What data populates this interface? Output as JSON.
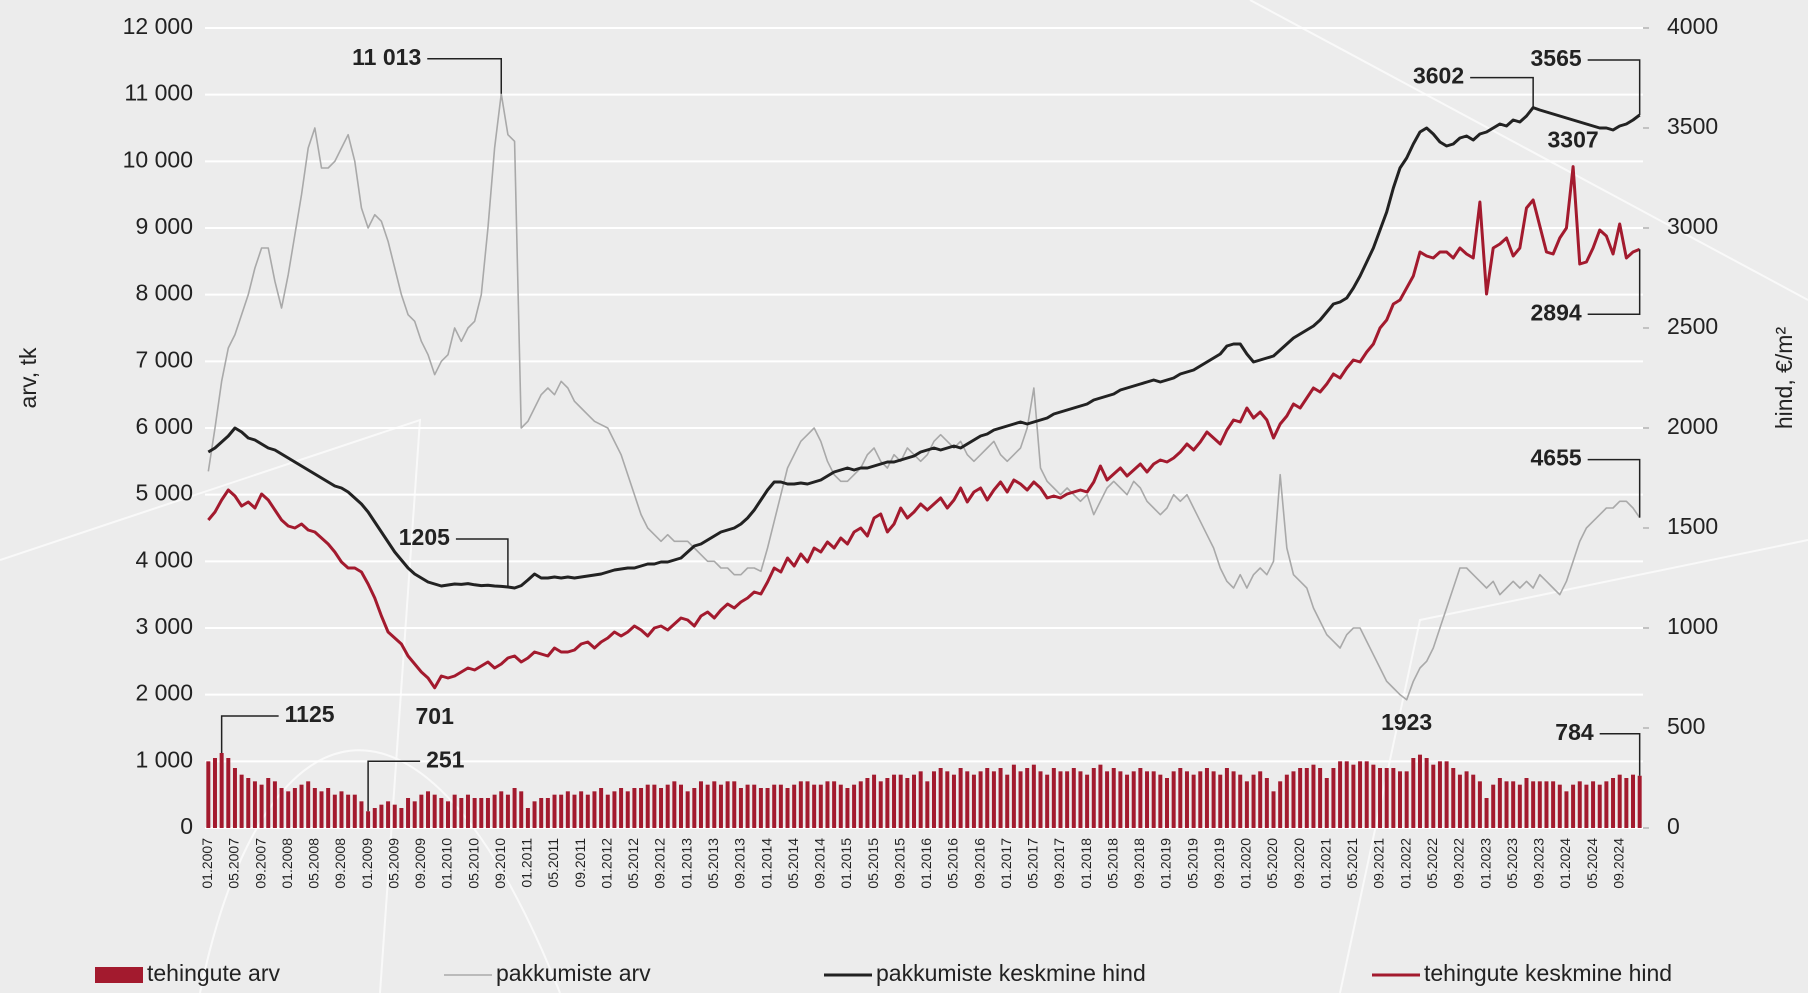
{
  "chart_data": {
    "type": "combo",
    "y_label": "arv, tk",
    "y2_label": "hind, €/m²",
    "ylim": [
      0,
      12000
    ],
    "yticks": [
      0,
      {
        "value": 1000,
        "label": "1 000"
      },
      {
        "value": 2000,
        "label": "2 000"
      },
      {
        "value": 3000,
        "label": "3 000"
      },
      {
        "value": 4000,
        "label": "4 000"
      },
      {
        "value": 5000,
        "label": "5 000"
      },
      {
        "value": 6000,
        "label": "6 000"
      },
      {
        "value": 7000,
        "label": "7 000"
      },
      {
        "value": 8000,
        "label": "8 000"
      },
      {
        "value": 9000,
        "label": "9 000"
      },
      {
        "value": 10000,
        "label": "10 000"
      },
      {
        "value": 11000,
        "label": "11 000"
      },
      {
        "value": 12000,
        "label": "12 000"
      }
    ],
    "y2lim": [
      0,
      4000
    ],
    "y2ticks": [
      0,
      500,
      1000,
      1500,
      2000,
      2500,
      3000,
      3500,
      4000
    ],
    "grid": true,
    "legend": "bottom",
    "categories": [
      "01.2007",
      null,
      null,
      null,
      "05.2007",
      null,
      null,
      null,
      "09.2007",
      null,
      null,
      null,
      "01.2008",
      null,
      null,
      null,
      "05.2008",
      null,
      null,
      null,
      "09.2008",
      null,
      null,
      null,
      "01.2009",
      null,
      null,
      null,
      "05.2009",
      null,
      null,
      null,
      "09.2009",
      null,
      null,
      null,
      "01.2010",
      null,
      null,
      null,
      "05.2010",
      null,
      null,
      null,
      "09.2010",
      null,
      null,
      null,
      "01.2011",
      null,
      null,
      null,
      "05.2011",
      null,
      null,
      null,
      "09.2011",
      null,
      null,
      null,
      "01.2012",
      null,
      null,
      null,
      "05.2012",
      null,
      null,
      null,
      "09.2012",
      null,
      null,
      null,
      "01.2013",
      null,
      null,
      null,
      "05.2013",
      null,
      null,
      null,
      "09.2013",
      null,
      null,
      null,
      "01.2014",
      null,
      null,
      null,
      "05.2014",
      null,
      null,
      null,
      "09.2014",
      null,
      null,
      null,
      "01.2015",
      null,
      null,
      null,
      "05.2015",
      null,
      null,
      null,
      "09.2015",
      null,
      null,
      null,
      "01.2016",
      null,
      null,
      null,
      "05.2016",
      null,
      null,
      null,
      "09.2016",
      null,
      null,
      null,
      "01.2017",
      null,
      null,
      null,
      "05.2017",
      null,
      null,
      null,
      "09.2017",
      null,
      null,
      null,
      "01.2018",
      null,
      null,
      null,
      "05.2018",
      null,
      null,
      null,
      "09.2018",
      null,
      null,
      null,
      "01.2019",
      null,
      null,
      null,
      "05.2019",
      null,
      null,
      null,
      "09.2019",
      null,
      null,
      null,
      "01.2020",
      null,
      null,
      null,
      "05.2020",
      null,
      null,
      null,
      "09.2020",
      null,
      null,
      null,
      "01.2021",
      null,
      null,
      null,
      "05.2021",
      null,
      null,
      null,
      "09.2021",
      null,
      null,
      null,
      "01.2022",
      null,
      null,
      null,
      "05.2022",
      null,
      null,
      null,
      "09.2022",
      null,
      null,
      null,
      "01.2023",
      null,
      null,
      null,
      "05.2023",
      null,
      null,
      null,
      "09.2023",
      null,
      null,
      null,
      "01.2024",
      null,
      null,
      null,
      "05.2024",
      null,
      null,
      null,
      "09.2024",
      null,
      null,
      null
    ],
    "series": [
      {
        "name": "tehingute arv",
        "type": "bar",
        "color": "#a31a2e",
        "annotations": [
          1125,
          251,
          784
        ],
        "values": [
          1000,
          1050,
          1125,
          1050,
          900,
          800,
          750,
          700,
          650,
          750,
          700,
          600,
          550,
          600,
          650,
          700,
          600,
          550,
          600,
          500,
          550,
          500,
          500,
          400,
          251,
          300,
          350,
          400,
          350,
          300,
          450,
          400,
          500,
          550,
          500,
          450,
          400,
          500,
          450,
          500,
          450,
          450,
          450,
          500,
          550,
          500,
          600,
          550,
          300,
          400,
          450,
          450,
          500,
          500,
          550,
          500,
          550,
          500,
          550,
          600,
          500,
          550,
          600,
          550,
          600,
          600,
          650,
          650,
          600,
          650,
          700,
          650,
          550,
          600,
          700,
          650,
          700,
          650,
          700,
          700,
          600,
          650,
          650,
          600,
          600,
          650,
          650,
          600,
          650,
          700,
          700,
          650,
          650,
          700,
          700,
          650,
          600,
          650,
          700,
          750,
          800,
          700,
          750,
          800,
          800,
          750,
          800,
          850,
          700,
          850,
          900,
          850,
          800,
          900,
          850,
          800,
          850,
          900,
          850,
          900,
          800,
          950,
          850,
          900,
          950,
          850,
          800,
          900,
          850,
          850,
          900,
          850,
          800,
          900,
          950,
          850,
          900,
          850,
          800,
          850,
          900,
          850,
          850,
          800,
          750,
          850,
          900,
          850,
          800,
          850,
          900,
          850,
          800,
          900,
          850,
          800,
          700,
          800,
          850,
          750,
          550,
          700,
          800,
          850,
          900,
          900,
          950,
          900,
          750,
          900,
          1000,
          1000,
          950,
          1000,
          1000,
          950,
          900,
          900,
          900,
          850,
          850,
          1050,
          1100,
          1050,
          950,
          1000,
          1000,
          900,
          800,
          850,
          800,
          700,
          450,
          650,
          750,
          700,
          700,
          650,
          750,
          700,
          700,
          700,
          700,
          650,
          550,
          650,
          700,
          650,
          700,
          650,
          700,
          750,
          800,
          750,
          800,
          784
        ]
      },
      {
        "name": "pakkumiste arv",
        "type": "line",
        "color": "#a9a9a9",
        "annotations": [
          {
            "value": 11013,
            "label": "11 013"
          },
          1923,
          4655
        ],
        "values": [
          5350,
          6000,
          6700,
          7200,
          7400,
          7700,
          8000,
          8400,
          8700,
          8700,
          8200,
          7800,
          8300,
          8900,
          9500,
          10200,
          10500,
          9900,
          9900,
          10000,
          10200,
          10400,
          10000,
          9300,
          9000,
          9200,
          9100,
          8800,
          8400,
          8000,
          7700,
          7600,
          7300,
          7100,
          6800,
          7000,
          7100,
          7500,
          7300,
          7500,
          7600,
          8000,
          9000,
          10200,
          11013,
          10400,
          10300,
          6000,
          6100,
          6300,
          6500,
          6600,
          6500,
          6700,
          6600,
          6400,
          6300,
          6200,
          6100,
          6050,
          6000,
          5800,
          5600,
          5300,
          5000,
          4700,
          4500,
          4400,
          4300,
          4400,
          4300,
          4300,
          4300,
          4200,
          4100,
          4000,
          4000,
          3900,
          3900,
          3800,
          3800,
          3900,
          3900,
          3850,
          4200,
          4600,
          5000,
          5400,
          5600,
          5800,
          5900,
          6000,
          5800,
          5500,
          5300,
          5200,
          5200,
          5300,
          5400,
          5600,
          5700,
          5500,
          5400,
          5600,
          5500,
          5700,
          5600,
          5500,
          5600,
          5800,
          5900,
          5800,
          5700,
          5800,
          5600,
          5500,
          5600,
          5700,
          5800,
          5600,
          5500,
          5600,
          5700,
          6000,
          6600,
          5400,
          5200,
          5100,
          5000,
          5100,
          5000,
          4900,
          5000,
          4700,
          4900,
          5100,
          5200,
          5100,
          5000,
          5200,
          5100,
          4900,
          4800,
          4700,
          4800,
          5000,
          4900,
          5000,
          4800,
          4600,
          4400,
          4200,
          3900,
          3700,
          3600,
          3800,
          3600,
          3800,
          3900,
          3800,
          4000,
          5300,
          4200,
          3800,
          3700,
          3600,
          3300,
          3100,
          2900,
          2800,
          2700,
          2900,
          3000,
          3000,
          2800,
          2600,
          2400,
          2200,
          2100,
          2000,
          1923,
          2200,
          2400,
          2500,
          2700,
          3000,
          3300,
          3600,
          3900,
          3900,
          3800,
          3700,
          3600,
          3700,
          3500,
          3600,
          3700,
          3600,
          3700,
          3600,
          3800,
          3700,
          3600,
          3500,
          3700,
          4000,
          4300,
          4500,
          4600,
          4700,
          4800,
          4800,
          4900,
          4900,
          4800,
          4655
        ]
      },
      {
        "name": "pakkumiste keskmine hind",
        "type": "line",
        "axis": "y2",
        "color": "#222222",
        "annotations": [
          1205,
          3602,
          3565
        ],
        "values": [
          1880,
          1900,
          1930,
          1960,
          2000,
          1980,
          1950,
          1940,
          1920,
          1900,
          1890,
          1870,
          1850,
          1830,
          1810,
          1790,
          1770,
          1750,
          1730,
          1710,
          1700,
          1680,
          1650,
          1620,
          1580,
          1530,
          1480,
          1430,
          1380,
          1340,
          1300,
          1270,
          1250,
          1230,
          1220,
          1210,
          1215,
          1220,
          1218,
          1222,
          1216,
          1212,
          1214,
          1210,
          1208,
          1205,
          1200,
          1212,
          1240,
          1270,
          1250,
          1250,
          1255,
          1250,
          1255,
          1250,
          1255,
          1260,
          1265,
          1270,
          1280,
          1290,
          1295,
          1300,
          1300,
          1310,
          1320,
          1320,
          1330,
          1330,
          1340,
          1350,
          1380,
          1410,
          1420,
          1440,
          1460,
          1480,
          1490,
          1500,
          1520,
          1550,
          1590,
          1640,
          1690,
          1730,
          1730,
          1720,
          1720,
          1725,
          1720,
          1730,
          1740,
          1760,
          1780,
          1790,
          1800,
          1790,
          1800,
          1800,
          1810,
          1820,
          1830,
          1830,
          1840,
          1850,
          1860,
          1880,
          1890,
          1900,
          1890,
          1900,
          1910,
          1900,
          1920,
          1940,
          1960,
          1970,
          1990,
          2000,
          2010,
          2020,
          2030,
          2020,
          2030,
          2040,
          2050,
          2070,
          2080,
          2090,
          2100,
          2110,
          2120,
          2140,
          2150,
          2160,
          2170,
          2190,
          2200,
          2210,
          2220,
          2230,
          2240,
          2230,
          2240,
          2250,
          2270,
          2280,
          2290,
          2310,
          2330,
          2350,
          2370,
          2410,
          2420,
          2420,
          2370,
          2330,
          2340,
          2350,
          2360,
          2390,
          2420,
          2450,
          2470,
          2490,
          2510,
          2540,
          2580,
          2620,
          2630,
          2650,
          2700,
          2760,
          2830,
          2900,
          2990,
          3080,
          3200,
          3300,
          3350,
          3420,
          3480,
          3500,
          3470,
          3430,
          3410,
          3420,
          3450,
          3460,
          3440,
          3470,
          3480,
          3500,
          3520,
          3510,
          3540,
          3530,
          3560,
          3602,
          3590,
          3580,
          3570,
          3560,
          3550,
          3540,
          3530,
          3520,
          3510,
          3500,
          3500,
          3490,
          3510,
          3520,
          3540,
          3565
        ]
      },
      {
        "name": "tehingute keskmine hind",
        "type": "line",
        "axis": "y2",
        "color": "#a31a2e",
        "annotations": [
          701,
          3307,
          2894
        ],
        "values": [
          1540,
          1580,
          1640,
          1690,
          1660,
          1610,
          1630,
          1600,
          1670,
          1640,
          1590,
          1540,
          1510,
          1500,
          1520,
          1490,
          1480,
          1450,
          1420,
          1380,
          1330,
          1300,
          1300,
          1280,
          1220,
          1150,
          1060,
          980,
          950,
          920,
          860,
          820,
          780,
          750,
          701,
          760,
          750,
          760,
          780,
          800,
          790,
          810,
          830,
          800,
          820,
          850,
          860,
          830,
          850,
          880,
          870,
          860,
          900,
          880,
          880,
          890,
          920,
          930,
          900,
          930,
          950,
          980,
          960,
          980,
          1010,
          990,
          960,
          1000,
          1010,
          990,
          1020,
          1050,
          1040,
          1010,
          1060,
          1080,
          1050,
          1090,
          1120,
          1100,
          1130,
          1150,
          1180,
          1170,
          1230,
          1300,
          1280,
          1350,
          1310,
          1370,
          1330,
          1400,
          1380,
          1430,
          1400,
          1450,
          1420,
          1480,
          1500,
          1460,
          1550,
          1570,
          1480,
          1520,
          1600,
          1550,
          1580,
          1620,
          1590,
          1620,
          1650,
          1600,
          1640,
          1700,
          1630,
          1680,
          1700,
          1640,
          1690,
          1730,
          1680,
          1740,
          1720,
          1690,
          1730,
          1700,
          1650,
          1660,
          1650,
          1670,
          1680,
          1690,
          1680,
          1730,
          1810,
          1740,
          1770,
          1800,
          1760,
          1790,
          1820,
          1780,
          1820,
          1840,
          1830,
          1850,
          1880,
          1920,
          1890,
          1930,
          1980,
          1950,
          1920,
          1990,
          2040,
          2030,
          2100,
          2050,
          2080,
          2040,
          1950,
          2020,
          2060,
          2120,
          2100,
          2150,
          2200,
          2180,
          2220,
          2270,
          2250,
          2300,
          2340,
          2330,
          2380,
          2420,
          2500,
          2540,
          2620,
          2640,
          2700,
          2760,
          2880,
          2860,
          2850,
          2880,
          2880,
          2850,
          2900,
          2870,
          2850,
          3130,
          2670,
          2900,
          2920,
          2950,
          2860,
          2900,
          3100,
          3140,
          3010,
          2880,
          2870,
          2950,
          3000,
          3307,
          2820,
          2830,
          2900,
          2990,
          2960,
          2870,
          3020,
          2850,
          2880,
          2894
        ]
      }
    ]
  }
}
